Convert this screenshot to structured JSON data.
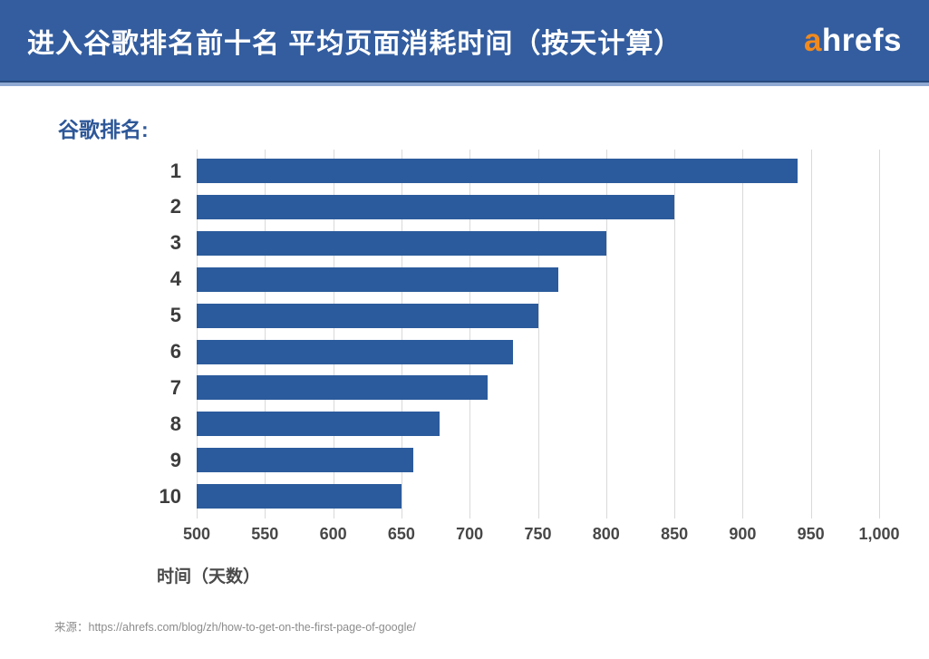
{
  "header": {
    "title": "进入谷歌排名前十名 平均页面消耗时间（按天计算）",
    "logo_a": "a",
    "logo_rest": "hrefs",
    "logo_accent_color": "#f18a1d",
    "bg_color": "#335d9f",
    "border_dark": "#27497c",
    "border_light": "#8fa9d2"
  },
  "chart_data": {
    "type": "bar",
    "orientation": "horizontal",
    "title": "谷歌排名:",
    "title_color": "#2d5798",
    "categories": [
      "1",
      "2",
      "3",
      "4",
      "5",
      "6",
      "7",
      "8",
      "9",
      "10"
    ],
    "values": [
      940,
      850,
      800,
      765,
      750,
      732,
      713,
      678,
      659,
      650
    ],
    "xlabel": "时间（天数）",
    "ylabel": "谷歌排名",
    "xlim": [
      500,
      1000
    ],
    "x_ticks": [
      {
        "value": 500,
        "label": "500"
      },
      {
        "value": 550,
        "label": "550"
      },
      {
        "value": 600,
        "label": "600"
      },
      {
        "value": 650,
        "label": "650"
      },
      {
        "value": 700,
        "label": "700"
      },
      {
        "value": 750,
        "label": "750"
      },
      {
        "value": 800,
        "label": "800"
      },
      {
        "value": 850,
        "label": "850"
      },
      {
        "value": 900,
        "label": "900"
      },
      {
        "value": 950,
        "label": "950"
      },
      {
        "value": 1000,
        "label": "1,000"
      }
    ],
    "grid": true,
    "gridline_color": "#d9d9d9",
    "bar_color": "#2b5b9c",
    "legend": "none"
  },
  "footer": {
    "source": "来源：https://ahrefs.com/blog/zh/how-to-get-on-the-first-page-of-google/"
  }
}
